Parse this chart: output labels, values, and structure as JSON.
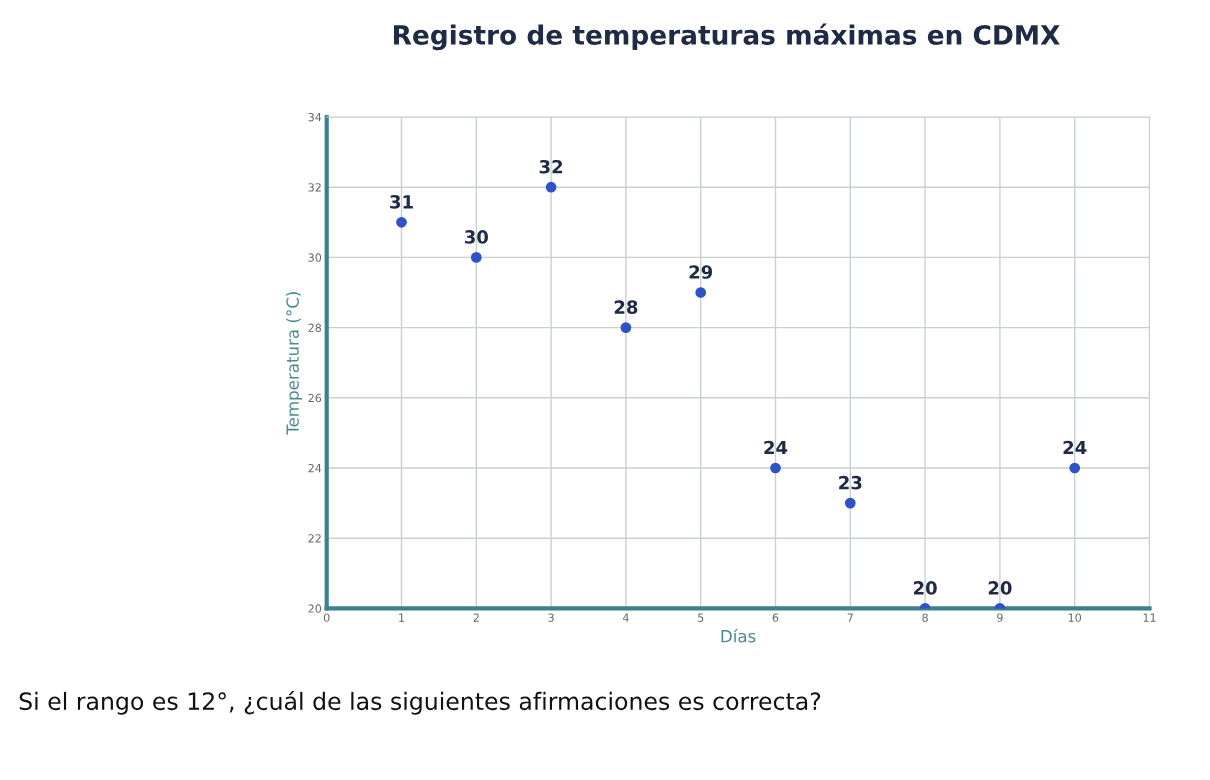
{
  "chart_data": {
    "type": "scatter",
    "title": "Registro de temperaturas máximas en CDMX",
    "xlabel": "Días",
    "ylabel": "Temperatura (°C)",
    "x": [
      1,
      2,
      3,
      4,
      5,
      6,
      7,
      8,
      9,
      10
    ],
    "series": [
      {
        "color": "#2f52c8",
        "values": [
          31,
          30,
          32,
          28,
          29,
          24,
          23,
          20,
          20,
          24
        ]
      }
    ],
    "data_labels": true,
    "marker": "circle",
    "xlim": [
      0,
      11
    ],
    "xticks": [
      0,
      1,
      2,
      3,
      4,
      5,
      6,
      7,
      8,
      9,
      10,
      11
    ],
    "ylim": [
      20,
      34
    ],
    "yticks": [
      20,
      22,
      24,
      26,
      28,
      30,
      32,
      34
    ],
    "grid": true,
    "legend": false,
    "annotations": [
      "Si el rango es 12°, ¿cuál de las siguientes afirmaciones es correcta?"
    ]
  }
}
